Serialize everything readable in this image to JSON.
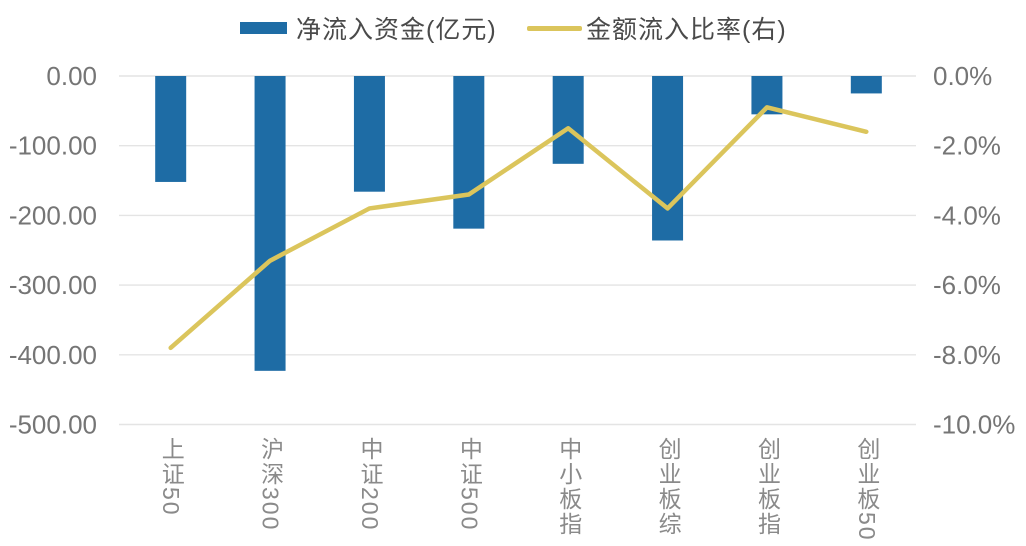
{
  "chart_data": {
    "type": "bar",
    "subtype": "bar-line-combo",
    "categories": [
      "上证50",
      "沪深300",
      "中证200",
      "中证500",
      "中小板指",
      "创业板综",
      "创业板指",
      "创业板50"
    ],
    "series": [
      {
        "name": "净流入资金(亿元)",
        "chart_type": "bar",
        "axis": "left",
        "color": "#1E6CA5",
        "values": [
          -152,
          -423,
          -166,
          -219,
          -126,
          -236,
          -55,
          -25
        ]
      },
      {
        "name": "金额流入比率(右)",
        "chart_type": "line",
        "axis": "right",
        "color": "#DBC55C",
        "values": [
          -7.8,
          -5.3,
          -3.8,
          -3.4,
          -1.5,
          -3.8,
          -0.9,
          -1.6
        ]
      }
    ],
    "left_axis": {
      "tick_labels": [
        "0.00",
        "-100.00",
        "-200.00",
        "-300.00",
        "-400.00",
        "-500.00"
      ],
      "max": 0,
      "min": -500
    },
    "right_axis": {
      "tick_labels": [
        "0.0%",
        "-2.0%",
        "-4.0%",
        "-6.0%",
        "-8.0%",
        "-10.0%"
      ],
      "max": 0,
      "min": -10
    },
    "grid": true,
    "legend_position": "top",
    "colors": {
      "gridline": "#E4E4E4",
      "tick_text": "#757575",
      "category_text": "#8A8A8A",
      "legend_text": "#4A4A4A",
      "background": "#FFFFFF"
    }
  }
}
